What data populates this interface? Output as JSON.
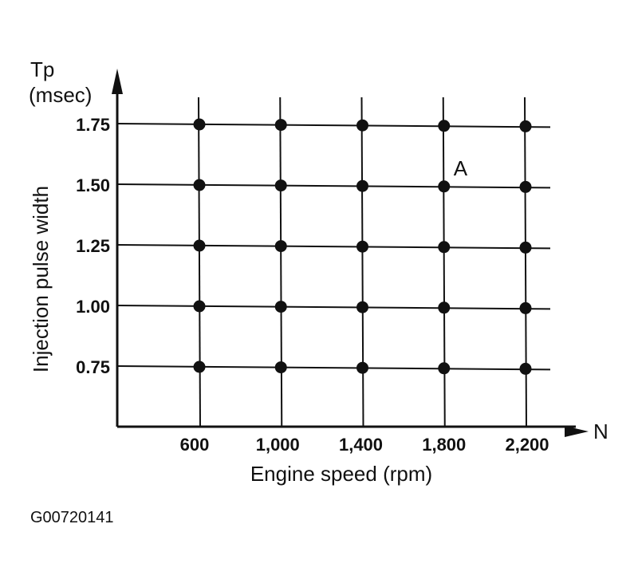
{
  "chart_data": {
    "type": "scatter",
    "xlabel": "Engine speed (rpm)",
    "ylabel": "Injection pulse width",
    "x_axis_symbol": "N",
    "y_axis_symbol": "Tp",
    "y_unit": "(msec)",
    "x_ticks": [
      600,
      1000,
      1400,
      1800,
      2200
    ],
    "x_tick_labels": [
      "600",
      "1,000",
      "1,400",
      "1,800",
      "2,200"
    ],
    "y_ticks": [
      0.75,
      1.0,
      1.25,
      1.5,
      1.75
    ],
    "y_tick_labels": [
      "0.75",
      "1.00",
      "1.25",
      "1.50",
      "1.75"
    ],
    "grid": true,
    "points": [
      [
        600,
        0.75
      ],
      [
        1000,
        0.75
      ],
      [
        1400,
        0.75
      ],
      [
        1800,
        0.75
      ],
      [
        2200,
        0.75
      ],
      [
        600,
        1.0
      ],
      [
        1000,
        1.0
      ],
      [
        1400,
        1.0
      ],
      [
        1800,
        1.0
      ],
      [
        2200,
        1.0
      ],
      [
        600,
        1.25
      ],
      [
        1000,
        1.25
      ],
      [
        1400,
        1.25
      ],
      [
        1800,
        1.25
      ],
      [
        2200,
        1.25
      ],
      [
        600,
        1.5
      ],
      [
        1000,
        1.5
      ],
      [
        1400,
        1.5
      ],
      [
        1800,
        1.5
      ],
      [
        2200,
        1.5
      ],
      [
        600,
        1.75
      ],
      [
        1000,
        1.75
      ],
      [
        1400,
        1.75
      ],
      [
        1800,
        1.75
      ],
      [
        2200,
        1.75
      ]
    ],
    "annotations": [
      {
        "text": "A",
        "x": 1800,
        "y": 1.5
      }
    ]
  },
  "figure_code": "G00720141"
}
